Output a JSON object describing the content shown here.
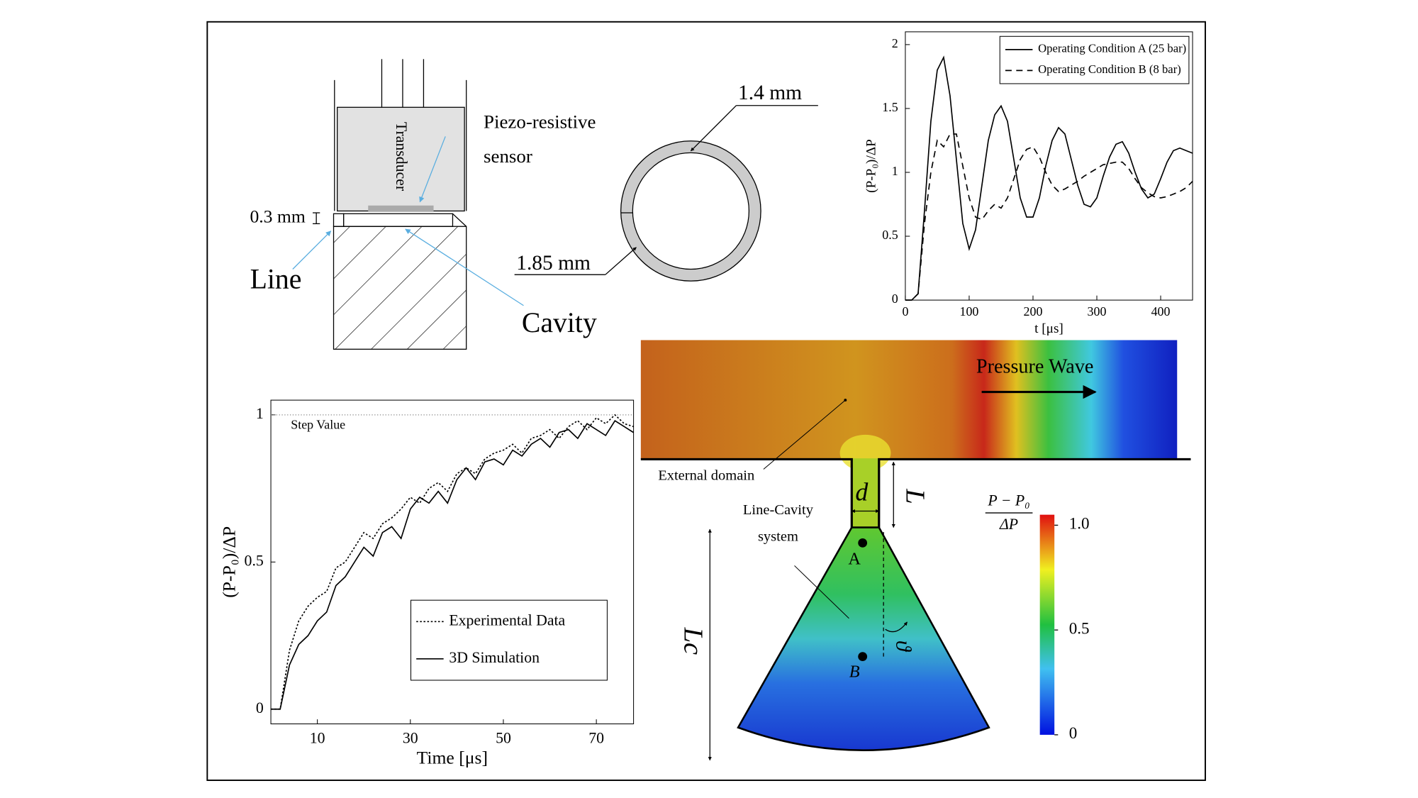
{
  "chart_data": [
    {
      "type": "line",
      "x_label": "t [μs]",
      "y_label": "(P-P₀)/ΔP",
      "x": [
        0,
        10,
        20,
        30,
        40,
        50,
        60,
        70,
        80,
        90,
        100,
        110,
        120,
        130,
        140,
        150,
        160,
        170,
        180,
        190,
        200,
        210,
        220,
        230,
        240,
        250,
        260,
        270,
        280,
        290,
        300,
        310,
        320,
        330,
        340,
        350,
        360,
        370,
        380,
        390,
        400,
        410,
        420,
        430,
        440,
        450
      ],
      "series": [
        {
          "name": "Operating Condition A (25 bar)",
          "color": "#000000",
          "linestyle": "solid",
          "values": [
            0,
            0,
            0.05,
            0.7,
            1.4,
            1.8,
            1.9,
            1.6,
            1.1,
            0.6,
            0.4,
            0.55,
            0.9,
            1.25,
            1.45,
            1.52,
            1.4,
            1.1,
            0.8,
            0.65,
            0.65,
            0.8,
            1.05,
            1.25,
            1.35,
            1.3,
            1.1,
            0.9,
            0.75,
            0.73,
            0.8,
            0.97,
            1.12,
            1.22,
            1.24,
            1.15,
            1.0,
            0.87,
            0.8,
            0.83,
            0.95,
            1.08,
            1.17,
            1.19,
            1.17,
            1.15
          ]
        },
        {
          "name": "Operating Condition B (8 bar)",
          "color": "#000000",
          "linestyle": "dashed",
          "values": [
            0,
            0,
            0.05,
            0.6,
            1.0,
            1.25,
            1.2,
            1.3,
            1.3,
            1.05,
            0.8,
            0.65,
            0.63,
            0.7,
            0.75,
            0.72,
            0.8,
            0.95,
            1.1,
            1.18,
            1.2,
            1.12,
            1.0,
            0.9,
            0.85,
            0.87,
            0.9,
            0.93,
            0.97,
            1.0,
            1.03,
            1.06,
            1.07,
            1.08,
            1.08,
            1.03,
            0.95,
            0.88,
            0.84,
            0.81,
            0.8,
            0.81,
            0.83,
            0.85,
            0.88,
            0.93
          ]
        }
      ],
      "xlim": [
        0,
        450
      ],
      "xticks": [
        0,
        100,
        200,
        300,
        400
      ],
      "ylim": [
        0,
        2.1
      ],
      "yticks": [
        0,
        0.5,
        1,
        1.5,
        2
      ],
      "legend": "upper right"
    },
    {
      "type": "line",
      "x_label": "Time [μs]",
      "y_label": "(P-P₀)/ΔP",
      "annotation": "Step Value",
      "reference_line": 1,
      "x": [
        0,
        2,
        4,
        6,
        8,
        10,
        12,
        14,
        16,
        18,
        20,
        22,
        24,
        26,
        28,
        30,
        32,
        34,
        36,
        38,
        40,
        42,
        44,
        46,
        48,
        50,
        52,
        54,
        56,
        58,
        60,
        62,
        64,
        66,
        68,
        70,
        72,
        74,
        76,
        78
      ],
      "series": [
        {
          "name": "Experimental Data",
          "color": "#000000",
          "linestyle": "dotted",
          "values": [
            0,
            0,
            0.2,
            0.3,
            0.35,
            0.38,
            0.4,
            0.48,
            0.5,
            0.55,
            0.6,
            0.58,
            0.63,
            0.65,
            0.68,
            0.72,
            0.7,
            0.75,
            0.77,
            0.74,
            0.8,
            0.82,
            0.8,
            0.85,
            0.87,
            0.88,
            0.9,
            0.87,
            0.92,
            0.93,
            0.95,
            0.92,
            0.96,
            0.98,
            0.95,
            0.99,
            0.97,
            1.0,
            0.97,
            0.96
          ]
        },
        {
          "name": "3D Simulation",
          "color": "#000000",
          "linestyle": "solid",
          "values": [
            0,
            0,
            0.15,
            0.22,
            0.25,
            0.3,
            0.33,
            0.42,
            0.45,
            0.5,
            0.55,
            0.52,
            0.6,
            0.62,
            0.58,
            0.68,
            0.72,
            0.7,
            0.74,
            0.7,
            0.78,
            0.82,
            0.78,
            0.84,
            0.85,
            0.83,
            0.88,
            0.86,
            0.9,
            0.92,
            0.89,
            0.94,
            0.95,
            0.92,
            0.97,
            0.95,
            0.93,
            0.98,
            0.96,
            0.94
          ]
        }
      ],
      "xlim": [
        0,
        78
      ],
      "xticks": [
        10,
        30,
        50,
        70
      ],
      "ylim": [
        -0.05,
        1.05
      ],
      "yticks": [
        0,
        0.5,
        1
      ],
      "legend": "lower right"
    }
  ],
  "labels": {
    "transducer": "Transducer",
    "sensor_1": "Piezo-resistive",
    "sensor_2": "sensor",
    "gap": "0.3 mm",
    "line": "Line",
    "cavity": "Cavity",
    "inner": "1.4 mm",
    "outer": "1.85 mm",
    "wave": "Pressure Wave",
    "external": "External domain",
    "system_1": "Line-Cavity",
    "system_2": "system",
    "d": "d",
    "L": "L",
    "Lc": "Lc",
    "A": "A",
    "B": "B",
    "theta": "ϑ"
  },
  "colorbar": {
    "title_top": "P − P₀",
    "title_bottom": "ΔP",
    "lim": [
      0,
      1.05
    ],
    "ticks": [
      {
        "value": 1,
        "label": "1.0"
      },
      0.5,
      0
    ]
  }
}
